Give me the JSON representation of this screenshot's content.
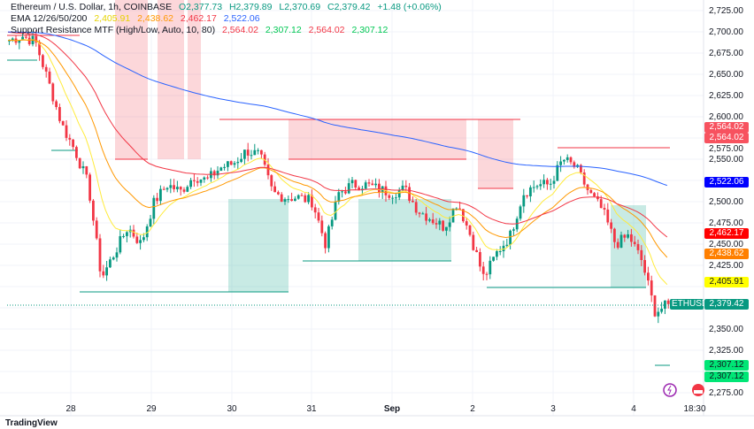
{
  "legend": {
    "symbol": "Ethereum / U.S. Dollar, 1h, COINBASE",
    "o": "O2,377.73",
    "h": "H2,379.89",
    "l": "L2,370.69",
    "c": "C2,379.42",
    "change": "+1.48 (+0.06%)",
    "ema_label": "EMA 12/26/50/200",
    "ema12": "2,405.91",
    "ema26": "2,438.62",
    "ema50": "2,462.17",
    "ema200": "2,522.06",
    "sr_label": "Support Resistance MTF (High/Low, Auto, 10, 80)",
    "sr1": "2,564.02",
    "sr2": "2,307.12",
    "sr3": "2,564.02",
    "sr4": "2,307.12"
  },
  "price_axis": [
    "2,725.00",
    "2,700.00",
    "2,675.00",
    "2,650.00",
    "2,625.00",
    "2,600.00",
    "2,575.00",
    "2,550.00",
    "2,500.00",
    "2,475.00",
    "2,450.00",
    "2,425.00",
    "2,350.00",
    "2,325.00",
    "2,275.00"
  ],
  "tags": {
    "res": "2,564.02",
    "res2": "2,564.02",
    "ema200": "2,522.06",
    "ema50": "2,462.17",
    "ema26": "2,438.62",
    "ema12": "2,405.91",
    "symbol": "ETHUSD",
    "last": "2,379.42",
    "sup": "2,307.12",
    "sup2": "2,307.12"
  },
  "time_axis": [
    "28",
    "29",
    "30",
    "31",
    "Sep",
    "2",
    "3",
    "4",
    "18:30"
  ],
  "colors": {
    "up": "#089981",
    "down": "#f23645",
    "ema12": "#ffeb3b",
    "ema26": "#ff9800",
    "ema50": "#f23645",
    "ema200": "#2962ff"
  },
  "price_path": [
    2690,
    2695,
    2688,
    2640,
    2590,
    2560,
    2520,
    2410,
    2440,
    2470,
    2450,
    2500,
    2520,
    2512,
    2530,
    2525,
    2540,
    2545,
    2560,
    2555,
    2510,
    2505,
    2505,
    2500,
    2450,
    2510,
    2520,
    2520,
    2515,
    2510,
    2515,
    2490,
    2480,
    2470,
    2500,
    2460,
    2410,
    2440,
    2460,
    2510,
    2520,
    2520,
    2550,
    2540,
    2510,
    2490,
    2450,
    2460,
    2430,
    2370,
    2379
  ],
  "watermark": "TradingView"
}
